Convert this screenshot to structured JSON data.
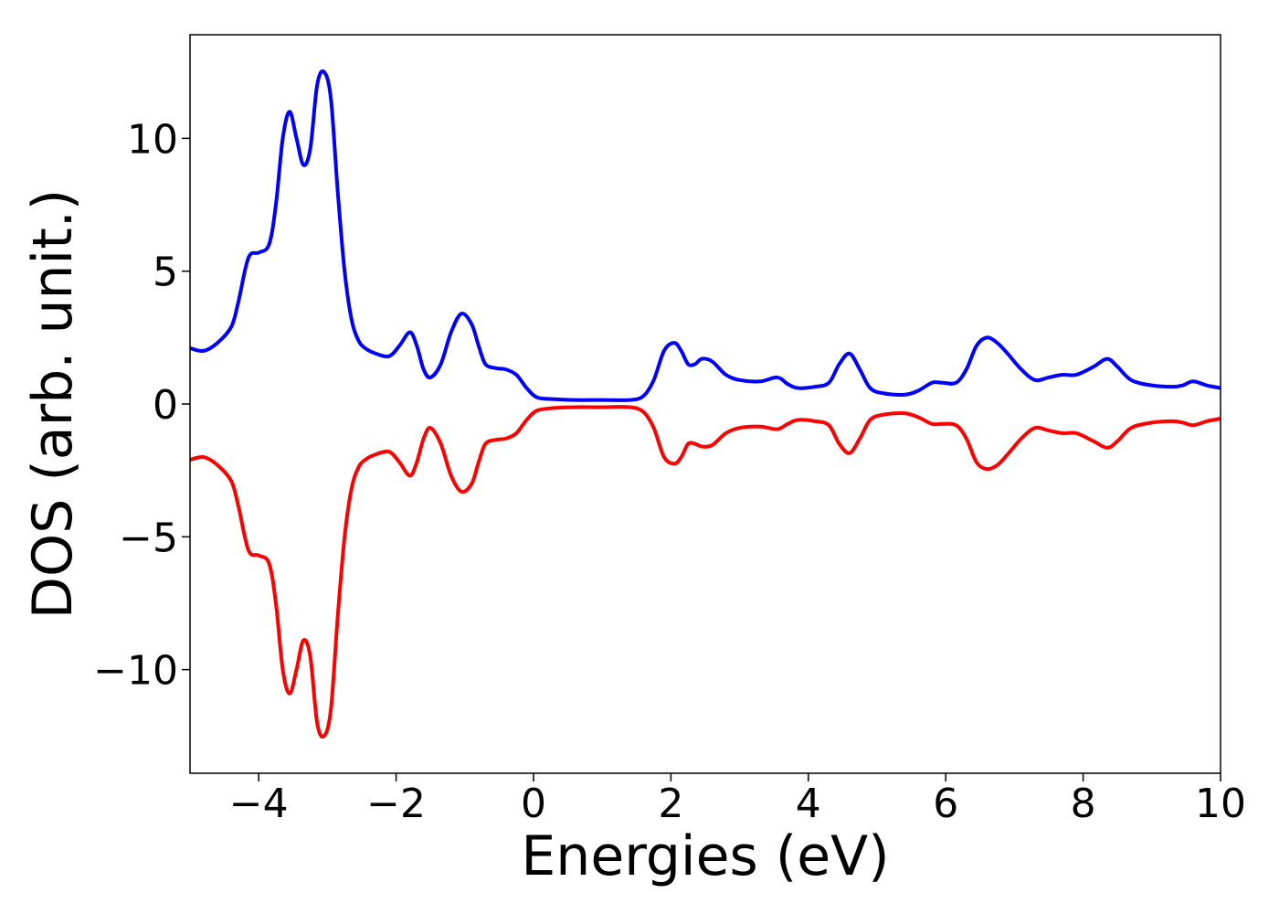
{
  "chart_data": {
    "type": "line",
    "xlabel": "Energies (eV)",
    "ylabel": "DOS (arb. unit.)",
    "xlim": [
      -5,
      10
    ],
    "ylim": [
      -13.9,
      13.9
    ],
    "xticks": [
      {
        "v": -4,
        "label": "−4"
      },
      {
        "v": -2,
        "label": "−2"
      },
      {
        "v": 0,
        "label": "0"
      },
      {
        "v": 2,
        "label": "2"
      },
      {
        "v": 4,
        "label": "4"
      },
      {
        "v": 6,
        "label": "6"
      },
      {
        "v": 8,
        "label": "8"
      },
      {
        "v": 10,
        "label": "10"
      }
    ],
    "yticks": [
      {
        "v": -10,
        "label": "−10"
      },
      {
        "v": -5,
        "label": "−5"
      },
      {
        "v": 0,
        "label": "0"
      },
      {
        "v": 5,
        "label": "5"
      },
      {
        "v": 10,
        "label": "10"
      }
    ],
    "grid": false,
    "legend": "none",
    "series": [
      {
        "color": "#0000ff",
        "x": [
          -5.0,
          -4.8,
          -4.6,
          -4.4,
          -4.3,
          -4.15,
          -4.0,
          -3.85,
          -3.75,
          -3.65,
          -3.55,
          -3.45,
          -3.35,
          -3.25,
          -3.15,
          -3.05,
          -2.95,
          -2.85,
          -2.75,
          -2.65,
          -2.55,
          -2.45,
          -2.3,
          -2.1,
          -1.95,
          -1.8,
          -1.7,
          -1.6,
          -1.5,
          -1.35,
          -1.2,
          -1.05,
          -0.9,
          -0.8,
          -0.7,
          -0.55,
          -0.4,
          -0.25,
          -0.1,
          0.05,
          0.3,
          0.6,
          1.0,
          1.4,
          1.6,
          1.75,
          1.9,
          2.05,
          2.15,
          2.25,
          2.35,
          2.45,
          2.6,
          2.8,
          3.0,
          3.3,
          3.55,
          3.7,
          3.85,
          4.1,
          4.3,
          4.45,
          4.6,
          4.75,
          4.9,
          5.1,
          5.4,
          5.6,
          5.8,
          5.95,
          6.15,
          6.3,
          6.45,
          6.6,
          6.75,
          6.9,
          7.1,
          7.3,
          7.5,
          7.7,
          7.9,
          8.15,
          8.35,
          8.5,
          8.7,
          9.0,
          9.3,
          9.45,
          9.6,
          9.8,
          10.0
        ],
        "y": [
          2.1,
          2.0,
          2.3,
          2.9,
          3.8,
          5.5,
          5.7,
          6.0,
          7.5,
          10.0,
          11.0,
          10.0,
          9.0,
          9.6,
          12.0,
          12.5,
          11.5,
          8.0,
          5.0,
          3.2,
          2.4,
          2.1,
          1.9,
          1.8,
          2.2,
          2.7,
          2.2,
          1.3,
          1.0,
          1.5,
          2.7,
          3.4,
          3.0,
          2.2,
          1.5,
          1.35,
          1.3,
          1.1,
          0.6,
          0.25,
          0.18,
          0.15,
          0.15,
          0.15,
          0.3,
          0.9,
          2.0,
          2.3,
          2.0,
          1.5,
          1.5,
          1.7,
          1.6,
          1.1,
          0.9,
          0.85,
          1.0,
          0.75,
          0.6,
          0.65,
          0.8,
          1.5,
          1.9,
          1.3,
          0.6,
          0.4,
          0.35,
          0.5,
          0.8,
          0.8,
          0.8,
          1.3,
          2.2,
          2.5,
          2.3,
          1.9,
          1.3,
          0.9,
          1.0,
          1.1,
          1.1,
          1.4,
          1.7,
          1.4,
          0.9,
          0.7,
          0.65,
          0.7,
          0.85,
          0.7,
          0.6
        ]
      },
      {
        "color": "#ff0000",
        "x": [
          -5.0,
          -4.8,
          -4.6,
          -4.4,
          -4.3,
          -4.15,
          -4.0,
          -3.85,
          -3.75,
          -3.65,
          -3.55,
          -3.45,
          -3.35,
          -3.25,
          -3.15,
          -3.05,
          -2.95,
          -2.85,
          -2.75,
          -2.65,
          -2.55,
          -2.45,
          -2.3,
          -2.1,
          -1.95,
          -1.8,
          -1.7,
          -1.6,
          -1.5,
          -1.35,
          -1.2,
          -1.05,
          -0.9,
          -0.8,
          -0.7,
          -0.55,
          -0.4,
          -0.25,
          -0.1,
          0.05,
          0.3,
          0.6,
          1.0,
          1.4,
          1.6,
          1.75,
          1.9,
          2.05,
          2.15,
          2.25,
          2.35,
          2.45,
          2.6,
          2.8,
          3.0,
          3.3,
          3.55,
          3.7,
          3.85,
          4.1,
          4.3,
          4.45,
          4.6,
          4.75,
          4.9,
          5.1,
          5.4,
          5.6,
          5.8,
          5.95,
          6.15,
          6.3,
          6.45,
          6.6,
          6.75,
          6.9,
          7.1,
          7.3,
          7.5,
          7.7,
          7.9,
          8.15,
          8.35,
          8.5,
          8.7,
          9.0,
          9.3,
          9.45,
          9.6,
          9.8,
          10.0
        ],
        "y": [
          -2.1,
          -2.0,
          -2.3,
          -2.9,
          -3.8,
          -5.5,
          -5.7,
          -6.0,
          -7.5,
          -10.0,
          -10.9,
          -10.0,
          -8.9,
          -9.5,
          -12.0,
          -12.5,
          -11.5,
          -8.0,
          -5.0,
          -3.2,
          -2.4,
          -2.1,
          -1.9,
          -1.8,
          -2.2,
          -2.7,
          -2.2,
          -1.3,
          -0.9,
          -1.5,
          -2.7,
          -3.3,
          -3.0,
          -2.2,
          -1.5,
          -1.35,
          -1.3,
          -1.1,
          -0.6,
          -0.25,
          -0.15,
          -0.12,
          -0.12,
          -0.12,
          -0.3,
          -0.9,
          -2.0,
          -2.25,
          -2.0,
          -1.5,
          -1.5,
          -1.6,
          -1.55,
          -1.1,
          -0.9,
          -0.85,
          -0.95,
          -0.75,
          -0.6,
          -0.65,
          -0.8,
          -1.5,
          -1.85,
          -1.3,
          -0.6,
          -0.4,
          -0.35,
          -0.5,
          -0.75,
          -0.75,
          -0.8,
          -1.3,
          -2.2,
          -2.45,
          -2.3,
          -1.9,
          -1.3,
          -0.9,
          -1.0,
          -1.1,
          -1.1,
          -1.4,
          -1.65,
          -1.4,
          -0.9,
          -0.7,
          -0.65,
          -0.7,
          -0.8,
          -0.65,
          -0.55
        ]
      }
    ]
  }
}
